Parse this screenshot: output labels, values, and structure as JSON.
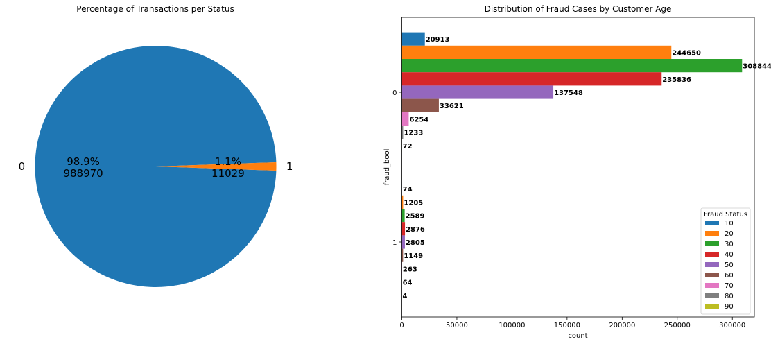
{
  "chart_data": [
    {
      "type": "pie",
      "title": "Percentage of Transactions per Status",
      "slices": [
        {
          "label": "0",
          "value": 988970,
          "percent": "98.9%",
          "color": "#1f77b4"
        },
        {
          "label": "1",
          "value": 11029,
          "percent": "1.1%",
          "color": "#ff7f0e"
        }
      ]
    },
    {
      "type": "bar",
      "orientation": "horizontal",
      "title": "Distribution of Fraud Cases by Customer Age",
      "xlabel": "count",
      "ylabel": "fraud_bool",
      "categories": [
        "0",
        "1"
      ],
      "xlim": [
        0,
        320000
      ],
      "xticks": [
        0,
        50000,
        100000,
        150000,
        200000,
        250000,
        300000
      ],
      "legend": {
        "title": "Fraud Status",
        "placement": "lower-right"
      },
      "series": [
        {
          "name": "10",
          "color": "#1f77b4",
          "values": [
            20913,
            74
          ]
        },
        {
          "name": "20",
          "color": "#ff7f0e",
          "values": [
            244650,
            1205
          ]
        },
        {
          "name": "30",
          "color": "#2ca02c",
          "values": [
            308844,
            2589
          ]
        },
        {
          "name": "40",
          "color": "#d62728",
          "values": [
            235836,
            2876
          ]
        },
        {
          "name": "50",
          "color": "#9467bd",
          "values": [
            137548,
            2805
          ]
        },
        {
          "name": "60",
          "color": "#8c564b",
          "values": [
            33621,
            1149
          ]
        },
        {
          "name": "70",
          "color": "#e377c2",
          "values": [
            6254,
            263
          ]
        },
        {
          "name": "80",
          "color": "#7f7f7f",
          "values": [
            1233,
            64
          ]
        },
        {
          "name": "90",
          "color": "#bcbd22",
          "values": [
            72,
            4
          ]
        }
      ]
    }
  ]
}
